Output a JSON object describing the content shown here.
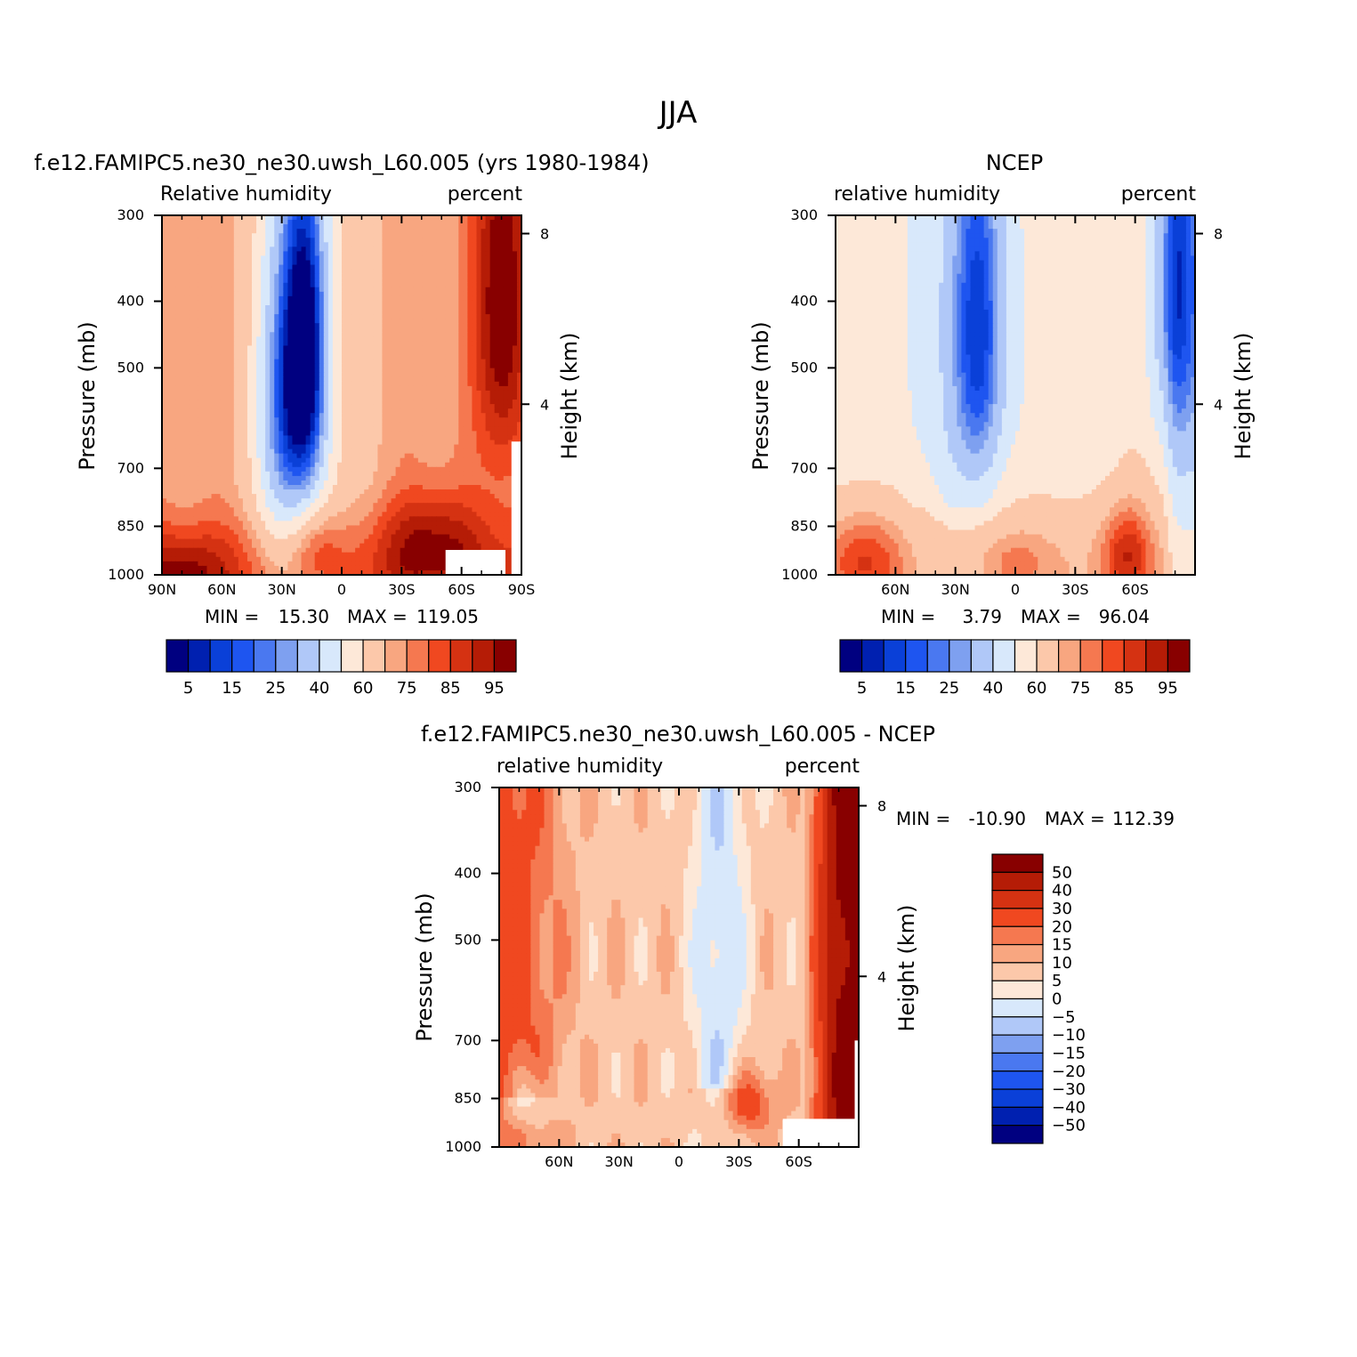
{
  "figure_title": "JJA",
  "palette": [
    "#000080",
    "#0020b0",
    "#0a40d8",
    "#1e55f0",
    "#4a78f0",
    "#7ea0f0",
    "#b0c8f8",
    "#d8e8fb",
    "#fde8d8",
    "#fcc8aa",
    "#f8a680",
    "#f57850",
    "#f04820",
    "#d53212",
    "#b51c06",
    "#880000"
  ],
  "chart_data": [
    {
      "type": "heatmap",
      "id": "model",
      "title": "f.e12.FAMIPC5.ne30_ne30.uwsh_L60.005 (yrs 1980-1984)",
      "left_label": "Relative humidity",
      "right_label": "percent",
      "ylabel": "Pressure (mb)",
      "y2label": "Height (km)",
      "x_range": [
        90,
        -90
      ],
      "x_ticks": [
        {
          "v": 90,
          "l": "90N"
        },
        {
          "v": 60,
          "l": "60N"
        },
        {
          "v": 30,
          "l": "30N"
        },
        {
          "v": 0,
          "l": "0"
        },
        {
          "v": -30,
          "l": "30S"
        },
        {
          "v": -60,
          "l": "60S"
        },
        {
          "v": -90,
          "l": "90S"
        }
      ],
      "y_range": [
        300,
        1000
      ],
      "y_ticks": [
        300,
        400,
        500,
        700,
        850,
        1000
      ],
      "y2_ticks": [
        {
          "km": 8,
          "l": "8"
        },
        {
          "km": 4,
          "l": "4"
        }
      ],
      "min_label": "MIN =",
      "min_value": "15.30",
      "max_label": "MAX =",
      "max_value": "119.05",
      "levels": [
        5,
        10,
        15,
        20,
        25,
        30,
        40,
        50,
        60,
        70,
        75,
        80,
        85,
        90,
        95
      ],
      "colorbar_labels": [
        "5",
        "15",
        "25",
        "40",
        "60",
        "75",
        "85",
        "95"
      ],
      "features": [
        {
          "lat": 18,
          "p": 480,
          "amp": -62,
          "wlat": 8,
          "wp": 190
        },
        {
          "lat": 32,
          "p": 570,
          "amp": -32,
          "wlat": 9,
          "wp": 230
        },
        {
          "lat": 15,
          "p": 900,
          "amp": 14,
          "wlat": 10,
          "wp": 90
        },
        {
          "lat": -45,
          "p": 880,
          "amp": 16,
          "wlat": 18,
          "wp": 110
        },
        {
          "lat": -80,
          "p": 400,
          "amp": 30,
          "wlat": 10,
          "wp": 200
        },
        {
          "lat": 80,
          "p": 990,
          "amp": 12,
          "wlat": 15,
          "wp": 80
        }
      ]
    },
    {
      "type": "heatmap",
      "id": "ncep",
      "title": "NCEP",
      "left_label": "relative humidity",
      "right_label": "percent",
      "ylabel": "Pressure (mb)",
      "y2label": "Height (km)",
      "x_range": [
        90,
        -90
      ],
      "x_ticks": [
        {
          "v": 60,
          "l": "60N"
        },
        {
          "v": 30,
          "l": "30N"
        },
        {
          "v": 0,
          "l": "0"
        },
        {
          "v": -30,
          "l": "30S"
        },
        {
          "v": -60,
          "l": "60S"
        }
      ],
      "y_range": [
        300,
        1000
      ],
      "y_ticks": [
        300,
        400,
        500,
        700,
        850,
        1000
      ],
      "y2_ticks": [
        {
          "km": 8,
          "l": "8"
        },
        {
          "km": 4,
          "l": "4"
        }
      ],
      "min_label": "MIN =",
      "min_value": "3.79",
      "max_label": "MAX =",
      "max_value": "96.04",
      "levels": [
        5,
        10,
        15,
        20,
        25,
        30,
        40,
        50,
        60,
        70,
        75,
        80,
        85,
        90,
        95
      ],
      "colorbar_labels": [
        "5",
        "15",
        "25",
        "40",
        "60",
        "75",
        "85",
        "95"
      ],
      "features": [
        {
          "lat": 18,
          "p": 440,
          "amp": -35,
          "wlat": 9,
          "wp": 190
        },
        {
          "lat": -80,
          "p": 380,
          "amp": -30,
          "wlat": 9,
          "wp": 160
        },
        {
          "lat": 75,
          "p": 950,
          "amp": 18,
          "wlat": 14,
          "wp": 110
        },
        {
          "lat": -55,
          "p": 930,
          "amp": 18,
          "wlat": 9,
          "wp": 100
        },
        {
          "lat": 0,
          "p": 950,
          "amp": 10,
          "wlat": 15,
          "wp": 80
        }
      ]
    },
    {
      "type": "heatmap",
      "id": "diff",
      "title": "f.e12.FAMIPC5.ne30_ne30.uwsh_L60.005 - NCEP",
      "left_label": "relative humidity",
      "right_label": "percent",
      "ylabel": "Pressure (mb)",
      "y2label": "Height (km)",
      "x_range": [
        90,
        -90
      ],
      "x_ticks": [
        {
          "v": 60,
          "l": "60N"
        },
        {
          "v": 30,
          "l": "30N"
        },
        {
          "v": 0,
          "l": "0"
        },
        {
          "v": -30,
          "l": "30S"
        },
        {
          "v": -60,
          "l": "60S"
        }
      ],
      "y_range": [
        300,
        1000
      ],
      "y_ticks": [
        300,
        400,
        500,
        700,
        850,
        1000
      ],
      "y2_ticks": [
        {
          "km": 8,
          "l": "8"
        },
        {
          "km": 4,
          "l": "4"
        }
      ],
      "min_label": "MIN =",
      "min_value": "-10.90",
      "max_label": "MAX =",
      "max_value": "112.39",
      "levels": [
        -50,
        -40,
        -30,
        -20,
        -15,
        -10,
        -5,
        0,
        5,
        10,
        15,
        20,
        30,
        40,
        50
      ],
      "colorbar_labels": [
        "50",
        "40",
        "30",
        "20",
        "15",
        "10",
        "5",
        "0",
        "−5",
        "−10",
        "−15",
        "−20",
        "−30",
        "−40",
        "−50"
      ],
      "features": [
        {
          "lat": -35,
          "p": 860,
          "amp": 17,
          "wlat": 9,
          "wp": 70
        },
        {
          "lat": 75,
          "p": 850,
          "amp": -12,
          "wlat": 8,
          "wp": 60
        }
      ]
    }
  ]
}
